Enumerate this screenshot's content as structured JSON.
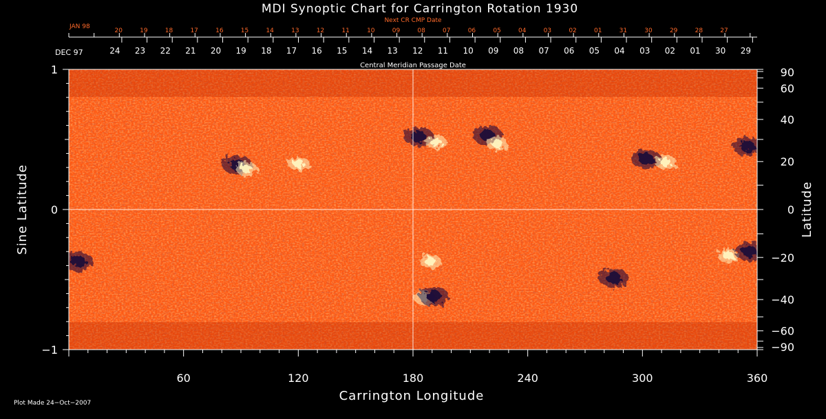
{
  "chart_data": {
    "type": "heatmap",
    "title": "MDI Synoptic Chart for Carrington Rotation 1930",
    "xlabel": "Carrington Longitude",
    "ylabel_left": "Sine Latitude",
    "ylabel_right": "Latitude",
    "xlim": [
      0,
      360
    ],
    "ylim": [
      -1,
      1
    ],
    "x_ticks": [
      60,
      120,
      180,
      240,
      300,
      360
    ],
    "y_ticks_left": [
      {
        "value": 1,
        "label": "1"
      },
      {
        "value": 0,
        "label": "0"
      },
      {
        "value": -1,
        "label": "−1"
      }
    ],
    "y_ticks_right": [
      90,
      60,
      40,
      20,
      0,
      -20,
      -40,
      -60,
      -90
    ],
    "top_axis_title": "Central Meridian Passage Date",
    "top_axis_start_label": "DEC 97",
    "top_axis_days": [
      "24",
      "23",
      "22",
      "21",
      "20",
      "19",
      "18",
      "17",
      "16",
      "15",
      "14",
      "13",
      "12",
      "11",
      "10",
      "09",
      "08",
      "07",
      "06",
      "05",
      "04",
      "03",
      "02",
      "01",
      "30",
      "29"
    ],
    "next_cr_title": "Next CR CMP Date",
    "next_cr_start_label": "JAN 98",
    "next_cr_days": [
      "20",
      "19",
      "18",
      "17",
      "16",
      "15",
      "14",
      "13",
      "12",
      "11",
      "10",
      "09",
      "08",
      "07",
      "06",
      "05",
      "04",
      "03",
      "02",
      "01",
      "31",
      "30",
      "29",
      "28",
      "27"
    ],
    "gridlines": {
      "x": [
        180
      ],
      "y": [
        0
      ]
    },
    "colors": {
      "background": "#000000",
      "field_base": "#ff5a14",
      "negative_polarity": "#1a0a3a",
      "positive_polarity": "#fff4c0",
      "next_cr_text": "#ff6a2a"
    },
    "active_regions": [
      {
        "lon": 88,
        "sinlat": 0.32,
        "polarity": "negative"
      },
      {
        "lon": 93,
        "sinlat": 0.29,
        "polarity": "positive"
      },
      {
        "lon": 120,
        "sinlat": 0.33,
        "polarity": "positive"
      },
      {
        "lon": 183,
        "sinlat": 0.52,
        "polarity": "negative"
      },
      {
        "lon": 192,
        "sinlat": 0.48,
        "polarity": "positive"
      },
      {
        "lon": 219,
        "sinlat": 0.53,
        "polarity": "negative"
      },
      {
        "lon": 224,
        "sinlat": 0.47,
        "polarity": "positive"
      },
      {
        "lon": 302,
        "sinlat": 0.36,
        "polarity": "negative"
      },
      {
        "lon": 312,
        "sinlat": 0.34,
        "polarity": "positive"
      },
      {
        "lon": 355,
        "sinlat": 0.45,
        "polarity": "negative"
      },
      {
        "lon": 5,
        "sinlat": -0.37,
        "polarity": "negative"
      },
      {
        "lon": 189,
        "sinlat": -0.37,
        "polarity": "positive"
      },
      {
        "lon": 186,
        "sinlat": -0.63,
        "polarity": "positive"
      },
      {
        "lon": 191,
        "sinlat": -0.62,
        "polarity": "negative"
      },
      {
        "lon": 345,
        "sinlat": -0.33,
        "polarity": "positive"
      },
      {
        "lon": 356,
        "sinlat": -0.3,
        "polarity": "negative"
      },
      {
        "lon": 285,
        "sinlat": -0.49,
        "polarity": "negative"
      }
    ]
  },
  "footer": {
    "plot_made": "Plot Made 24−Oct−2007"
  }
}
